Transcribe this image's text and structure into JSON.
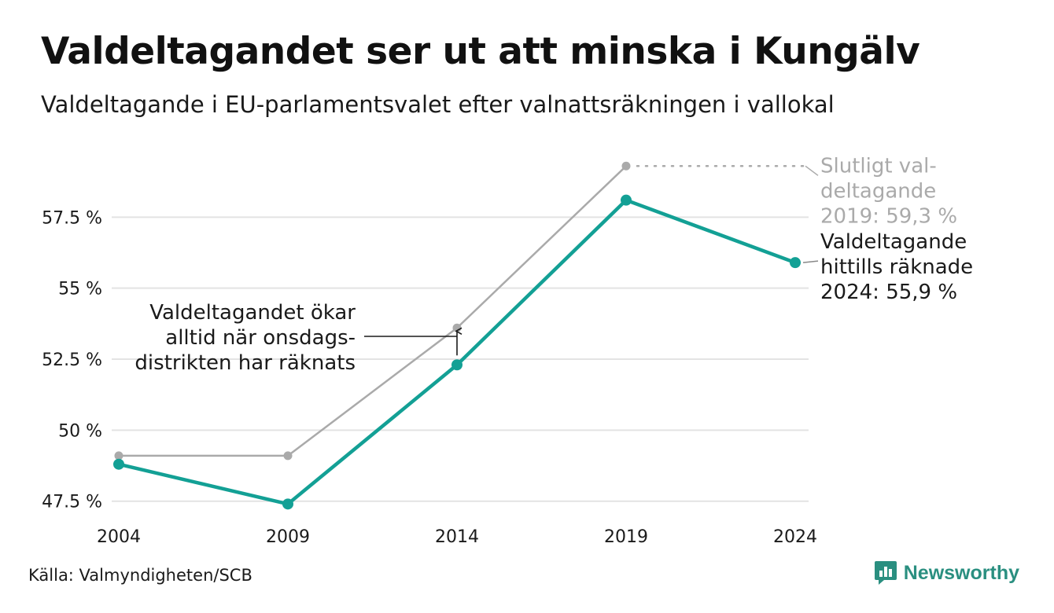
{
  "header": {
    "title": "Valdeltagandet ser ut att minska i Kungälv",
    "subtitle": "Valdeltagande i EU-parlamentsvalet efter valnattsräkningen i vallokal"
  },
  "footer": {
    "source": "Källa: Valmyndigheten/SCB",
    "brand": "Newsworthy"
  },
  "colors": {
    "election_night": "#13a095",
    "final": "#aaaaaa",
    "grid": "#e3e3e3",
    "annotation": "#1a1a1a",
    "brand": "#2a8f80"
  },
  "chart_data": {
    "type": "line",
    "title": "",
    "xlabel": "",
    "ylabel": "",
    "x": [
      "2004",
      "2009",
      "2014",
      "2019",
      "2024"
    ],
    "yticks": [
      {
        "value": 47.5,
        "label": "47.5 %"
      },
      {
        "value": 50,
        "label": "50 %"
      },
      {
        "value": 52.5,
        "label": "52.5 %"
      },
      {
        "value": 55,
        "label": "55 %"
      },
      {
        "value": 57.5,
        "label": "57.5 %"
      }
    ],
    "ylim": [
      46.8,
      60.0
    ],
    "grid": true,
    "series": [
      {
        "key": "final",
        "values": [
          49.1,
          49.1,
          53.6,
          59.3,
          null
        ]
      },
      {
        "key": "election_night",
        "values": [
          48.8,
          47.4,
          52.3,
          58.1,
          55.9
        ]
      }
    ],
    "annotations": [
      {
        "key": "final_label",
        "lines": [
          "Slutligt val-",
          "deltagande",
          "2019: 59,3 %"
        ]
      },
      {
        "key": "current_label",
        "lines": [
          "Valdeltagande",
          "hittills räknade",
          "2024: 55,9 %"
        ]
      },
      {
        "key": "note",
        "lines": [
          "Valdeltagandet ökar",
          "alltid när onsdags-",
          "distrikten har räknats"
        ]
      }
    ]
  }
}
